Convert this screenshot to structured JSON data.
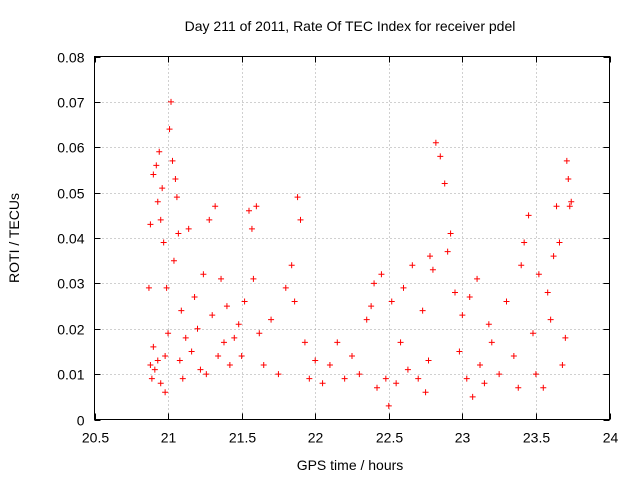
{
  "chart_data": {
    "type": "scatter",
    "title": "Day 211 of 2011, Rate Of TEC Index for receiver pdel",
    "xlabel": "GPS time / hours",
    "ylabel": "ROTI / TECUs",
    "xlim": [
      20.5,
      24
    ],
    "ylim": [
      0,
      0.08
    ],
    "xticks": [
      20.5,
      21,
      21.5,
      22,
      22.5,
      23,
      23.5,
      24
    ],
    "xtick_labels": [
      "20.5",
      "21",
      "21.5",
      "22",
      "22.5",
      "23",
      "23.5",
      "24"
    ],
    "yticks": [
      0,
      0.01,
      0.02,
      0.03,
      0.04,
      0.05,
      0.06,
      0.07,
      0.08
    ],
    "ytick_labels": [
      "0",
      "0.01",
      "0.02",
      "0.03",
      "0.04",
      "0.05",
      "0.06",
      "0.07",
      "0.08"
    ],
    "grid": true,
    "legend": "none",
    "marker": "+",
    "color": "#ff0000",
    "series": [
      {
        "name": "ROTI",
        "x": [
          20.87,
          20.88,
          20.88,
          20.89,
          20.9,
          20.9,
          20.91,
          20.92,
          20.93,
          20.93,
          20.94,
          20.95,
          20.95,
          20.96,
          20.97,
          20.98,
          20.98,
          20.99,
          21.0,
          21.01,
          21.02,
          21.03,
          21.04,
          21.05,
          21.06,
          21.07,
          21.08,
          21.09,
          21.1,
          21.12,
          21.14,
          21.16,
          21.18,
          21.2,
          21.22,
          21.24,
          21.26,
          21.28,
          21.3,
          21.32,
          21.34,
          21.36,
          21.38,
          21.4,
          21.42,
          21.45,
          21.48,
          21.5,
          21.52,
          21.55,
          21.57,
          21.58,
          21.6,
          21.62,
          21.65,
          21.7,
          21.75,
          21.8,
          21.84,
          21.86,
          21.88,
          21.9,
          21.93,
          21.96,
          22.0,
          22.05,
          22.1,
          22.15,
          22.2,
          22.25,
          22.3,
          22.35,
          22.38,
          22.4,
          22.42,
          22.45,
          22.48,
          22.5,
          22.52,
          22.55,
          22.58,
          22.6,
          22.63,
          22.66,
          22.7,
          22.73,
          22.75,
          22.77,
          22.78,
          22.8,
          22.82,
          22.85,
          22.88,
          22.9,
          22.92,
          22.95,
          22.98,
          23.0,
          23.03,
          23.05,
          23.07,
          23.1,
          23.12,
          23.15,
          23.18,
          23.2,
          23.25,
          23.3,
          23.35,
          23.38,
          23.4,
          23.42,
          23.45,
          23.48,
          23.5,
          23.52,
          23.55,
          23.58,
          23.6,
          23.62,
          23.64,
          23.66,
          23.68,
          23.7,
          23.71,
          23.72,
          23.73,
          23.74
        ],
        "y": [
          0.029,
          0.012,
          0.043,
          0.009,
          0.054,
          0.016,
          0.011,
          0.056,
          0.048,
          0.013,
          0.059,
          0.044,
          0.008,
          0.051,
          0.039,
          0.014,
          0.006,
          0.029,
          0.019,
          0.064,
          0.07,
          0.057,
          0.035,
          0.053,
          0.049,
          0.041,
          0.013,
          0.024,
          0.009,
          0.018,
          0.042,
          0.015,
          0.027,
          0.02,
          0.011,
          0.032,
          0.01,
          0.044,
          0.023,
          0.047,
          0.014,
          0.031,
          0.017,
          0.025,
          0.012,
          0.018,
          0.021,
          0.014,
          0.026,
          0.046,
          0.042,
          0.031,
          0.047,
          0.019,
          0.012,
          0.022,
          0.01,
          0.029,
          0.034,
          0.026,
          0.049,
          0.044,
          0.017,
          0.009,
          0.013,
          0.008,
          0.012,
          0.017,
          0.009,
          0.014,
          0.01,
          0.022,
          0.025,
          0.03,
          0.007,
          0.032,
          0.009,
          0.003,
          0.026,
          0.008,
          0.017,
          0.029,
          0.011,
          0.034,
          0.009,
          0.024,
          0.006,
          0.013,
          0.036,
          0.033,
          0.061,
          0.058,
          0.052,
          0.037,
          0.041,
          0.028,
          0.015,
          0.023,
          0.009,
          0.027,
          0.005,
          0.031,
          0.012,
          0.008,
          0.021,
          0.017,
          0.01,
          0.026,
          0.014,
          0.007,
          0.034,
          0.039,
          0.045,
          0.019,
          0.01,
          0.032,
          0.007,
          0.028,
          0.022,
          0.036,
          0.047,
          0.039,
          0.012,
          0.018,
          0.057,
          0.053,
          0.047,
          0.048
        ]
      }
    ]
  }
}
